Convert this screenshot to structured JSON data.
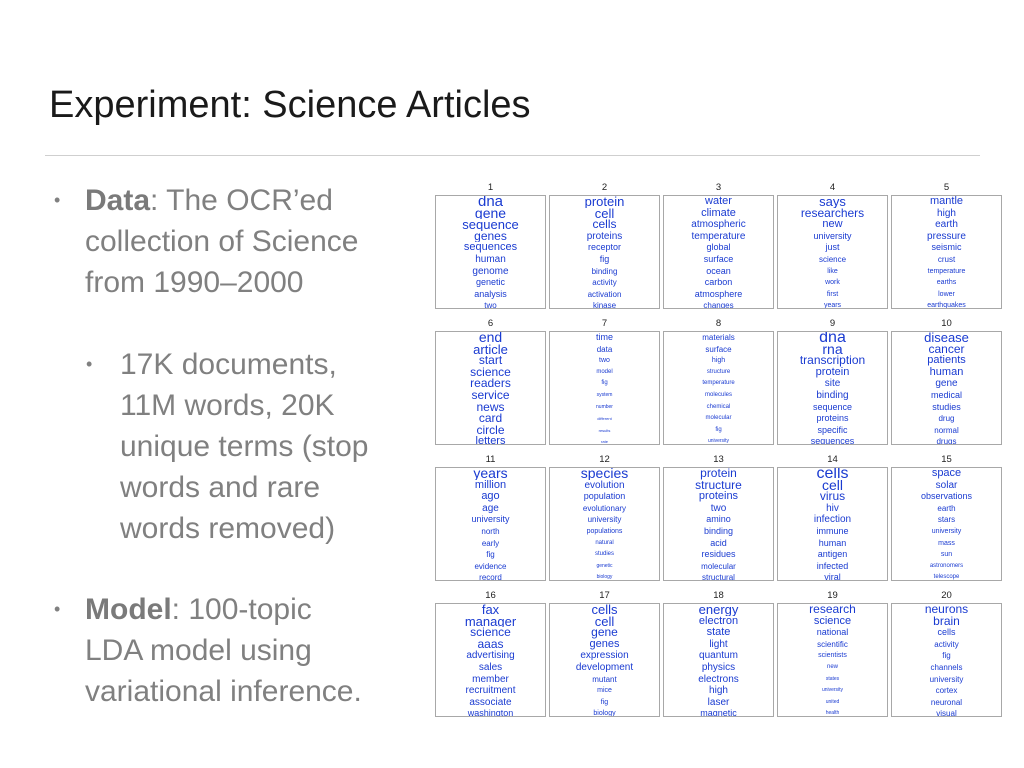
{
  "slide": {
    "title": "Experiment: Science Articles",
    "bullets": [
      {
        "lines": [
          {
            "bold": "Data",
            "rest": ": The OCR’ed"
          },
          {
            "bold": "",
            "rest": "collection of Science"
          },
          {
            "bold": "",
            "rest": "from 1990–2000"
          }
        ]
      },
      {
        "lines": [
          {
            "bold": "",
            "rest": "17K documents,"
          },
          {
            "bold": "",
            "rest": "11M words, 20K"
          },
          {
            "bold": "",
            "rest": "unique terms (stop"
          },
          {
            "bold": "",
            "rest": "words and rare"
          },
          {
            "bold": "",
            "rest": "words removed)"
          }
        ]
      },
      {
        "lines": [
          {
            "bold": "Model",
            "rest": ": 100-topic"
          },
          {
            "bold": "",
            "rest": "LDA model using"
          },
          {
            "bold": "",
            "rest": "variational inference."
          }
        ]
      }
    ]
  },
  "topics": [
    {
      "n": "1",
      "words": [
        "dna",
        "gene",
        "sequence",
        "genes",
        "sequences",
        "human",
        "genome",
        "genetic",
        "analysis",
        "two"
      ],
      "sizes": [
        15,
        14,
        13,
        12,
        11,
        10,
        10,
        9,
        9,
        8
      ]
    },
    {
      "n": "2",
      "words": [
        "protein",
        "cell",
        "cells",
        "proteins",
        "receptor",
        "fig",
        "binding",
        "activity",
        "activation",
        "kinase"
      ],
      "sizes": [
        13,
        13,
        12,
        10,
        9,
        9,
        8,
        8,
        8,
        8
      ]
    },
    {
      "n": "3",
      "words": [
        "water",
        "climate",
        "atmospheric",
        "temperature",
        "global",
        "surface",
        "ocean",
        "carbon",
        "atmosphere",
        "changes"
      ],
      "sizes": [
        11,
        11,
        10,
        10,
        9,
        9,
        9,
        9,
        9,
        8
      ]
    },
    {
      "n": "4",
      "words": [
        "says",
        "researchers",
        "new",
        "university",
        "just",
        "science",
        "like",
        "work",
        "first",
        "years"
      ],
      "sizes": [
        13,
        12,
        11,
        9,
        9,
        8,
        7,
        7,
        7,
        7
      ]
    },
    {
      "n": "5",
      "words": [
        "mantle",
        "high",
        "earth",
        "pressure",
        "seismic",
        "crust",
        "temperature",
        "earths",
        "lower",
        "earthquakes"
      ],
      "sizes": [
        11,
        10,
        10,
        10,
        9,
        8,
        7,
        7,
        7,
        7
      ]
    },
    {
      "n": "6",
      "words": [
        "end",
        "article",
        "start",
        "science",
        "readers",
        "service",
        "news",
        "card",
        "circle",
        "letters"
      ],
      "sizes": [
        14,
        13,
        12,
        12,
        12,
        12,
        12,
        12,
        12,
        11
      ]
    },
    {
      "n": "7",
      "words": [
        "time",
        "data",
        "two",
        "model",
        "fig",
        "system",
        "number",
        "different",
        "results",
        "rate"
      ],
      "sizes": [
        9,
        8,
        7,
        6,
        6,
        5,
        5,
        4,
        4,
        4
      ]
    },
    {
      "n": "8",
      "words": [
        "materials",
        "surface",
        "high",
        "structure",
        "temperature",
        "molecules",
        "chemical",
        "molecular",
        "fig",
        "university"
      ],
      "sizes": [
        8,
        8,
        7,
        6,
        6,
        6,
        6,
        6,
        6,
        5
      ]
    },
    {
      "n": "9",
      "words": [
        "dna",
        "rna",
        "transcription",
        "protein",
        "site",
        "binding",
        "sequence",
        "proteins",
        "specific",
        "sequences"
      ],
      "sizes": [
        16,
        14,
        12,
        11,
        10,
        10,
        9,
        9,
        9,
        9
      ]
    },
    {
      "n": "10",
      "words": [
        "disease",
        "cancer",
        "patients",
        "human",
        "gene",
        "medical",
        "studies",
        "drug",
        "normal",
        "drugs"
      ],
      "sizes": [
        13,
        12,
        11,
        11,
        10,
        9,
        9,
        8,
        8,
        8
      ]
    },
    {
      "n": "11",
      "words": [
        "years",
        "million",
        "ago",
        "age",
        "university",
        "north",
        "early",
        "fig",
        "evidence",
        "record"
      ],
      "sizes": [
        14,
        11,
        11,
        10,
        9,
        8,
        8,
        8,
        8,
        8
      ]
    },
    {
      "n": "12",
      "words": [
        "species",
        "evolution",
        "population",
        "evolutionary",
        "university",
        "populations",
        "natural",
        "studies",
        "genetic",
        "biology"
      ],
      "sizes": [
        14,
        10,
        9,
        8,
        8,
        7,
        6,
        6,
        5,
        5
      ]
    },
    {
      "n": "13",
      "words": [
        "protein",
        "structure",
        "proteins",
        "two",
        "amino",
        "binding",
        "acid",
        "residues",
        "molecular",
        "structural"
      ],
      "sizes": [
        12,
        12,
        11,
        10,
        9,
        9,
        9,
        9,
        8,
        8
      ]
    },
    {
      "n": "14",
      "words": [
        "cells",
        "cell",
        "virus",
        "hiv",
        "infection",
        "immune",
        "human",
        "antigen",
        "infected",
        "viral"
      ],
      "sizes": [
        16,
        14,
        12,
        10,
        10,
        9,
        9,
        9,
        9,
        9
      ]
    },
    {
      "n": "15",
      "words": [
        "space",
        "solar",
        "observations",
        "earth",
        "stars",
        "university",
        "mass",
        "sun",
        "astronomers",
        "telescope"
      ],
      "sizes": [
        11,
        10,
        9,
        8,
        8,
        7,
        7,
        7,
        6,
        6
      ]
    },
    {
      "n": "16",
      "words": [
        "fax",
        "manager",
        "science",
        "aaas",
        "advertising",
        "sales",
        "member",
        "recruitment",
        "associate",
        "washington"
      ],
      "sizes": [
        13,
        13,
        12,
        12,
        10,
        10,
        10,
        10,
        10,
        9
      ]
    },
    {
      "n": "17",
      "words": [
        "cells",
        "cell",
        "gene",
        "genes",
        "expression",
        "development",
        "mutant",
        "mice",
        "fig",
        "biology"
      ],
      "sizes": [
        13,
        13,
        12,
        11,
        10,
        10,
        8,
        7,
        7,
        7
      ]
    },
    {
      "n": "18",
      "words": [
        "energy",
        "electron",
        "state",
        "light",
        "quantum",
        "physics",
        "electrons",
        "high",
        "laser",
        "magnetic"
      ],
      "sizes": [
        13,
        11,
        11,
        10,
        10,
        10,
        10,
        10,
        10,
        9
      ]
    },
    {
      "n": "19",
      "words": [
        "research",
        "science",
        "national",
        "scientific",
        "scientists",
        "new",
        "states",
        "university",
        "united",
        "health"
      ],
      "sizes": [
        12,
        11,
        9,
        8,
        7,
        6,
        5,
        5,
        5,
        5
      ]
    },
    {
      "n": "20",
      "words": [
        "neurons",
        "brain",
        "cells",
        "activity",
        "fig",
        "channels",
        "university",
        "cortex",
        "neuronal",
        "visual"
      ],
      "sizes": [
        12,
        12,
        9,
        8,
        8,
        8,
        8,
        8,
        8,
        8
      ]
    }
  ]
}
